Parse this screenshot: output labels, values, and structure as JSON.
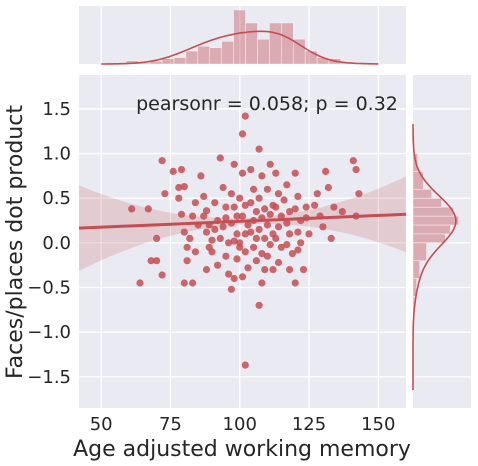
{
  "chart_data": {
    "type": "scatter",
    "style": "seaborn jointplot (regression) with marginal histograms and KDE",
    "xlabel": "Age adjusted working memory",
    "ylabel": "Faces/places dot product",
    "annotation": "pearsonr = 0.058; p = 0.32",
    "xlim": [
      42,
      160
    ],
    "ylim": [
      -1.85,
      1.88
    ],
    "xticks": [
      "50",
      "75",
      "100",
      "125",
      "150"
    ],
    "yticks": [
      "−1.5",
      "−1.0",
      "−0.5",
      "0.0",
      "0.5",
      "1.0",
      "1.5"
    ],
    "grid": true,
    "colors": {
      "points": "#c44e52",
      "background": "#eaeaf2",
      "grid": "#ffffff",
      "text": "#262626"
    },
    "regression": {
      "x0": 42,
      "y0": 0.165,
      "x1": 160,
      "y1": 0.32
    },
    "marginal_x_bins": [
      [
        59.0,
        63.3,
        0.06
      ],
      [
        63.3,
        67.6,
        0.02
      ],
      [
        67.6,
        72.0,
        0.05
      ],
      [
        72.0,
        76.3,
        0.1
      ],
      [
        76.3,
        80.6,
        0.12
      ],
      [
        80.6,
        84.9,
        0.24
      ],
      [
        84.9,
        89.2,
        0.33
      ],
      [
        89.2,
        93.5,
        0.3
      ],
      [
        93.5,
        97.8,
        0.42
      ],
      [
        97.8,
        102.1,
        1.0
      ],
      [
        102.1,
        106.4,
        0.76
      ],
      [
        106.4,
        110.7,
        0.46
      ],
      [
        110.7,
        115.0,
        0.76
      ],
      [
        115.0,
        119.3,
        0.76
      ],
      [
        119.3,
        123.6,
        0.46
      ],
      [
        123.6,
        127.9,
        0.24
      ],
      [
        127.9,
        132.2,
        0.12
      ],
      [
        132.2,
        136.5,
        0.1
      ],
      [
        136.5,
        140.8,
        0.04
      ]
    ],
    "marginal_y_bins": [
      [
        -1.5,
        -1.3,
        0.01
      ],
      [
        -0.8,
        -0.6,
        0.03
      ],
      [
        -0.6,
        -0.4,
        0.07
      ],
      [
        -0.4,
        -0.2,
        0.13
      ],
      [
        -0.2,
        0.0,
        0.26
      ],
      [
        0.0,
        0.1,
        0.62
      ],
      [
        0.1,
        0.2,
        0.72
      ],
      [
        0.2,
        0.3,
        0.88
      ],
      [
        0.3,
        0.4,
        0.78
      ],
      [
        0.4,
        0.5,
        0.55
      ],
      [
        0.5,
        0.6,
        0.36
      ],
      [
        0.6,
        0.8,
        0.2
      ],
      [
        0.8,
        1.0,
        0.09
      ],
      [
        1.0,
        1.2,
        0.03
      ],
      [
        1.2,
        1.4,
        0.01
      ]
    ],
    "points": [
      [
        61,
        0.38
      ],
      [
        67,
        0.38
      ],
      [
        72,
        0.92
      ],
      [
        73,
        0.55
      ],
      [
        78,
        0.62
      ],
      [
        76,
        0.8
      ],
      [
        72,
        -0.36
      ],
      [
        70,
        -0.2
      ],
      [
        64,
        -0.45
      ],
      [
        68,
        -0.2
      ],
      [
        70,
        0.05
      ],
      [
        79,
        0.82
      ],
      [
        80,
        0.63
      ],
      [
        78,
        0.5
      ],
      [
        79,
        0.32
      ],
      [
        80,
        0.12
      ],
      [
        82,
        0.05
      ],
      [
        81,
        -0.05
      ],
      [
        81,
        -0.2
      ],
      [
        80,
        -0.45
      ],
      [
        84,
        0.45
      ],
      [
        83,
        0.3
      ],
      [
        85,
        0.2
      ],
      [
        84,
        -0.1
      ],
      [
        83,
        -0.45
      ],
      [
        86,
        0.75
      ],
      [
        87,
        0.52
      ],
      [
        88,
        0.36
      ],
      [
        87,
        0.3
      ],
      [
        89,
        0.2
      ],
      [
        88,
        0.12
      ],
      [
        90,
        0.03
      ],
      [
        89,
        -0.05
      ],
      [
        90,
        -0.1
      ],
      [
        88,
        -0.3
      ],
      [
        91,
        0.45
      ],
      [
        92,
        0.25
      ],
      [
        91,
        0.15
      ],
      [
        93,
        0.05
      ],
      [
        92,
        -0.25
      ],
      [
        94,
        0.62
      ],
      [
        93,
        0.95
      ],
      [
        95,
        0.4
      ],
      [
        95,
        0.28
      ],
      [
        94,
        0.18
      ],
      [
        96,
        0.0
      ],
      [
        95,
        -0.15
      ],
      [
        96,
        -0.35
      ],
      [
        98,
        0.88
      ],
      [
        97,
        0.55
      ],
      [
        98,
        0.4
      ],
      [
        99,
        0.3
      ],
      [
        97,
        0.22
      ],
      [
        99,
        0.1
      ],
      [
        98,
        0.02
      ],
      [
        100,
        -0.05
      ],
      [
        99,
        -0.18
      ],
      [
        98,
        -0.4
      ],
      [
        97,
        -0.52
      ],
      [
        101,
        1.22
      ],
      [
        101,
        0.78
      ],
      [
        100,
        0.5
      ],
      [
        102,
        0.42
      ],
      [
        101,
        0.3
      ],
      [
        103,
        0.2
      ],
      [
        102,
        0.1
      ],
      [
        100,
        0.0
      ],
      [
        102,
        -0.1
      ],
      [
        103,
        -0.28
      ],
      [
        101,
        -0.38
      ],
      [
        102,
        1.42
      ],
      [
        102,
        -1.37
      ],
      [
        104,
        0.82
      ],
      [
        105,
        0.6
      ],
      [
        104,
        0.45
      ],
      [
        106,
        0.35
      ],
      [
        105,
        0.25
      ],
      [
        104,
        0.12
      ],
      [
        106,
        0.05
      ],
      [
        105,
        -0.05
      ],
      [
        106,
        -0.2
      ],
      [
        107,
        1.05
      ],
      [
        108,
        0.75
      ],
      [
        107,
        0.5
      ],
      [
        109,
        0.38
      ],
      [
        108,
        0.28
      ],
      [
        107,
        0.15
      ],
      [
        109,
        0.05
      ],
      [
        108,
        -0.12
      ],
      [
        109,
        -0.3
      ],
      [
        108,
        -0.45
      ],
      [
        107,
        -0.7
      ],
      [
        111,
        0.88
      ],
      [
        110,
        0.6
      ],
      [
        112,
        0.42
      ],
      [
        111,
        0.32
      ],
      [
        110,
        0.2
      ],
      [
        112,
        0.1
      ],
      [
        111,
        -0.02
      ],
      [
        110,
        -0.15
      ],
      [
        112,
        -0.3
      ],
      [
        113,
        0.78
      ],
      [
        114,
        0.55
      ],
      [
        113,
        0.4
      ],
      [
        115,
        0.3
      ],
      [
        114,
        0.18
      ],
      [
        113,
        0.05
      ],
      [
        115,
        -0.05
      ],
      [
        114,
        -0.22
      ],
      [
        116,
        0.48
      ],
      [
        117,
        0.65
      ],
      [
        118,
        0.35
      ],
      [
        117,
        0.22
      ],
      [
        118,
        0.1
      ],
      [
        117,
        -0.02
      ],
      [
        119,
        -0.12
      ],
      [
        118,
        -0.3
      ],
      [
        120,
        0.78
      ],
      [
        121,
        0.52
      ],
      [
        120,
        0.38
      ],
      [
        122,
        0.25
      ],
      [
        121,
        0.12
      ],
      [
        122,
        0.0
      ],
      [
        121,
        -0.08
      ],
      [
        123,
        -0.3
      ],
      [
        120,
        -0.45
      ],
      [
        124,
        0.4
      ],
      [
        124,
        0.28
      ],
      [
        125,
        0.1
      ],
      [
        127,
        0.42
      ],
      [
        128,
        0.55
      ],
      [
        129,
        0.3
      ],
      [
        131,
        0.8
      ],
      [
        130,
        0.18
      ],
      [
        132,
        0.62
      ],
      [
        134,
        0.4
      ],
      [
        133,
        0.05
      ],
      [
        141,
        0.92
      ],
      [
        142,
        0.82
      ],
      [
        142,
        0.3
      ],
      [
        143,
        0.55
      ],
      [
        137,
        0.35
      ]
    ]
  }
}
